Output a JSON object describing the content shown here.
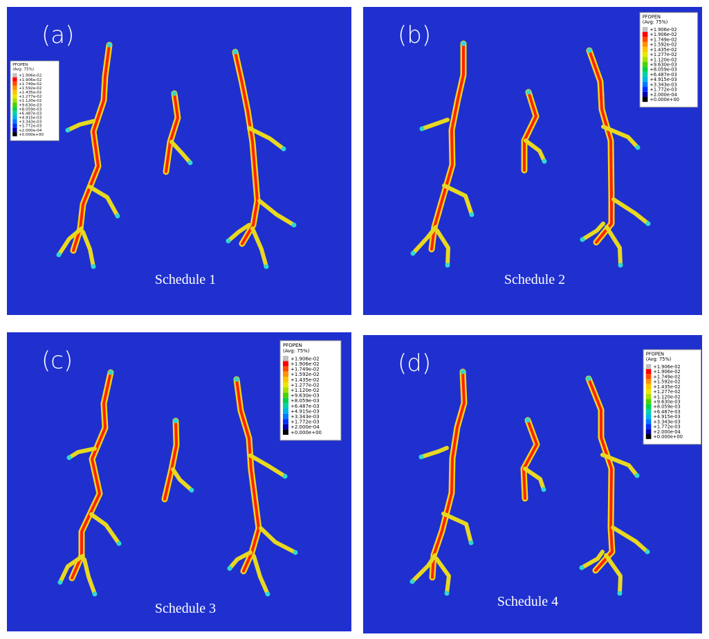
{
  "legend_colors": [
    "#c0c0c0",
    "#ff0000",
    "#ff4a00",
    "#ff9200",
    "#ffc400",
    "#e8e800",
    "#a8e000",
    "#46d200",
    "#00d048",
    "#00d2a8",
    "#00b4e8",
    "#0078ff",
    "#0030ff",
    "#0000b0",
    "#000000"
  ],
  "panels": [
    {
      "label": "(a)",
      "caption": "Schedule 1",
      "legend": {
        "title": "PFOPEN",
        "subtitle": "(Avg: 75%)",
        "values": [
          "+1.906e-02",
          "+1.906e-02",
          "+1.749e-02",
          "+1.592e-02",
          "+1.435e-02",
          "+1.277e-02",
          "+1.120e-02",
          "+9.630e-03",
          "+8.059e-03",
          "+6.487e-03",
          "+4.915e-03",
          "+3.343e-03",
          "+1.772e-03",
          "+2.000e-04",
          "+0.000e+00"
        ]
      }
    },
    {
      "label": "(b)",
      "caption": "Schedule 2",
      "legend": {
        "title": "PFOPEN",
        "subtitle": "(Avg: 75%)",
        "values": [
          "+1.906e-02",
          "+1.906e-02",
          "+1.749e-02",
          "+1.592e-02",
          "+1.435e-02",
          "+1.277e-02",
          "+1.120e-02",
          "+9.630e-03",
          "+8.059e-03",
          "+6.487e-03",
          "+4.915e-03",
          "+3.343e-03",
          "+1.772e-03",
          "+2.000e-04",
          "+0.000e+00"
        ]
      }
    },
    {
      "label": "(c)",
      "caption": "Schedule 3",
      "legend": {
        "title": "PFOPEN",
        "subtitle": "(Avg: 75%)",
        "values": [
          "+1.906e-02",
          "+1.906e-02",
          "+1.749e-02",
          "+1.592e-02",
          "+1.435e-02",
          "+1.277e-02",
          "+1.120e-02",
          "+9.630e-03",
          "+8.059e-03",
          "+6.487e-03",
          "+4.915e-03",
          "+3.343e-03",
          "+1.772e-03",
          "+2.000e-04",
          "+0.000e+00"
        ]
      }
    },
    {
      "label": "(d)",
      "caption": "Schedule 4",
      "legend": {
        "title": "PFOPEN",
        "subtitle": "(Avg: 75%)",
        "values": [
          "+1.906e-02",
          "+1.906e-02",
          "+1.749e-02",
          "+1.592e-02",
          "+1.435e-02",
          "+1.277e-02",
          "+1.120e-02",
          "+9.630e-03",
          "+8.059e-03",
          "+6.487e-03",
          "+4.915e-03",
          "+3.343e-03",
          "+1.772e-03",
          "+2.000e-04",
          "+0.000e+00"
        ]
      }
    }
  ]
}
